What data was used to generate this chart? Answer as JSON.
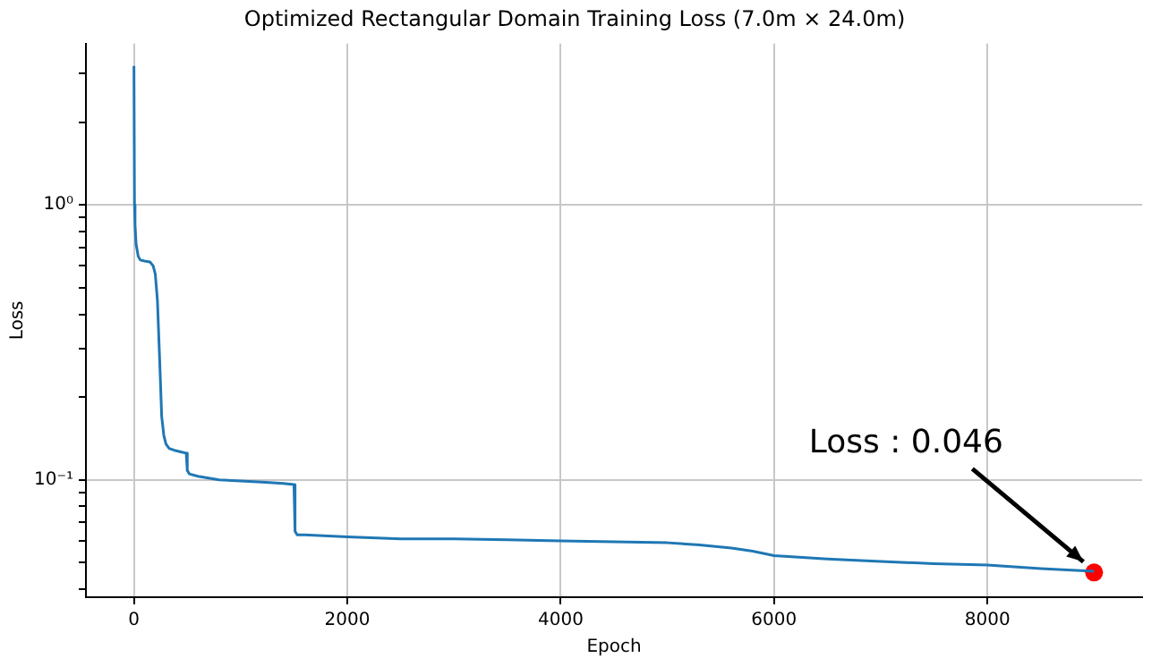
{
  "chart_data": {
    "type": "line",
    "title": "Optimized Rectangular Domain Training Loss (7.0m × 24.0m)",
    "xlabel": "Epoch",
    "ylabel": "Loss",
    "log": "y",
    "grid": true,
    "legend": false,
    "marker": "none",
    "xlim": [
      -450,
      9450
    ],
    "xticks": [
      0,
      2000,
      4000,
      6000,
      8000
    ],
    "ylim": [
      0.0374,
      3.86
    ],
    "yticks": [
      {
        "value": 0.04,
        "label": null
      },
      {
        "value": 0.05,
        "label": null
      },
      {
        "value": 0.06,
        "label": null
      },
      {
        "value": 0.07,
        "label": null
      },
      {
        "value": 0.08,
        "label": null
      },
      {
        "value": 0.09,
        "label": null
      },
      {
        "value": 0.1,
        "label": "10⁻¹"
      },
      {
        "value": 0.2,
        "label": null
      },
      {
        "value": 0.3,
        "label": null
      },
      {
        "value": 0.4,
        "label": null
      },
      {
        "value": 0.5,
        "label": null
      },
      {
        "value": 0.6,
        "label": null
      },
      {
        "value": 0.7,
        "label": null
      },
      {
        "value": 0.8,
        "label": null
      },
      {
        "value": 0.9,
        "label": null
      },
      {
        "value": 1,
        "label": "10⁰"
      },
      {
        "value": 2,
        "label": null
      },
      {
        "value": 3,
        "label": null
      }
    ],
    "series": [
      {
        "color": "#1f77b4",
        "x": [
          0,
          5,
          10,
          20,
          40,
          60,
          100,
          150,
          180,
          200,
          220,
          240,
          260,
          280,
          300,
          330,
          380,
          450,
          490,
          500,
          520,
          600,
          800,
          1000,
          1200,
          1400,
          1500,
          1510,
          1530,
          1600,
          2000,
          2500,
          3000,
          3500,
          4000,
          4500,
          5000,
          5300,
          5600,
          5800,
          6000,
          6500,
          7000,
          7500,
          8000,
          8500,
          9000
        ],
        "values": [
          3.2,
          1.0,
          0.85,
          0.72,
          0.65,
          0.63,
          0.625,
          0.62,
          0.6,
          0.56,
          0.45,
          0.28,
          0.17,
          0.145,
          0.135,
          0.13,
          0.128,
          0.126,
          0.125,
          0.108,
          0.105,
          0.103,
          0.1,
          0.099,
          0.098,
          0.097,
          0.096,
          0.065,
          0.063,
          0.063,
          0.062,
          0.061,
          0.061,
          0.0605,
          0.06,
          0.0595,
          0.059,
          0.058,
          0.0565,
          0.055,
          0.053,
          0.0515,
          0.0505,
          0.0495,
          0.049,
          0.0475,
          0.0465
        ]
      },
      {
        "type": "scatter",
        "marker": "circle",
        "color": "#ff0000",
        "x": [
          9000
        ],
        "values": [
          0.046
        ]
      }
    ],
    "annotations": [
      {
        "text": "Loss : 0.046",
        "x": 9000,
        "y": 0.046
      }
    ]
  }
}
